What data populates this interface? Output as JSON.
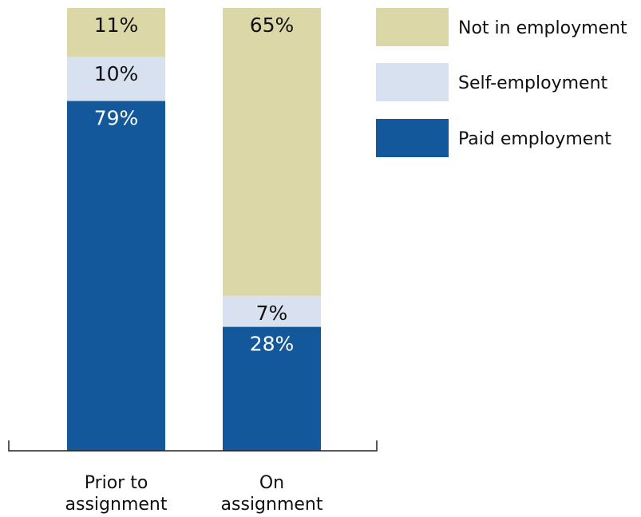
{
  "chart_data": {
    "type": "bar",
    "stacked": true,
    "categories": [
      "Prior to assignment",
      "On assignment"
    ],
    "category_lines": [
      [
        "Prior to",
        "assignment"
      ],
      [
        "On",
        "assignment"
      ]
    ],
    "series": [
      {
        "name": "Paid employment",
        "values": [
          79,
          28
        ],
        "labels": [
          "79%",
          "28%"
        ],
        "color": "#14589c",
        "label_color": "#ffffff"
      },
      {
        "name": "Self-employment",
        "values": [
          10,
          7
        ],
        "labels": [
          "10%",
          "7%"
        ],
        "color": "#d7e1f0",
        "label_color": "#111111"
      },
      {
        "name": "Not in employment",
        "values": [
          11,
          65
        ],
        "labels": [
          "11%",
          "65%"
        ],
        "color": "#dcd7a6",
        "label_color": "#111111"
      }
    ],
    "legend_order": [
      "Not in employment",
      "Self-employment",
      "Paid employment"
    ],
    "legend_position": "top-right",
    "ylim": [
      0,
      100
    ],
    "grid": false,
    "title": "",
    "xlabel": "",
    "ylabel": ""
  }
}
